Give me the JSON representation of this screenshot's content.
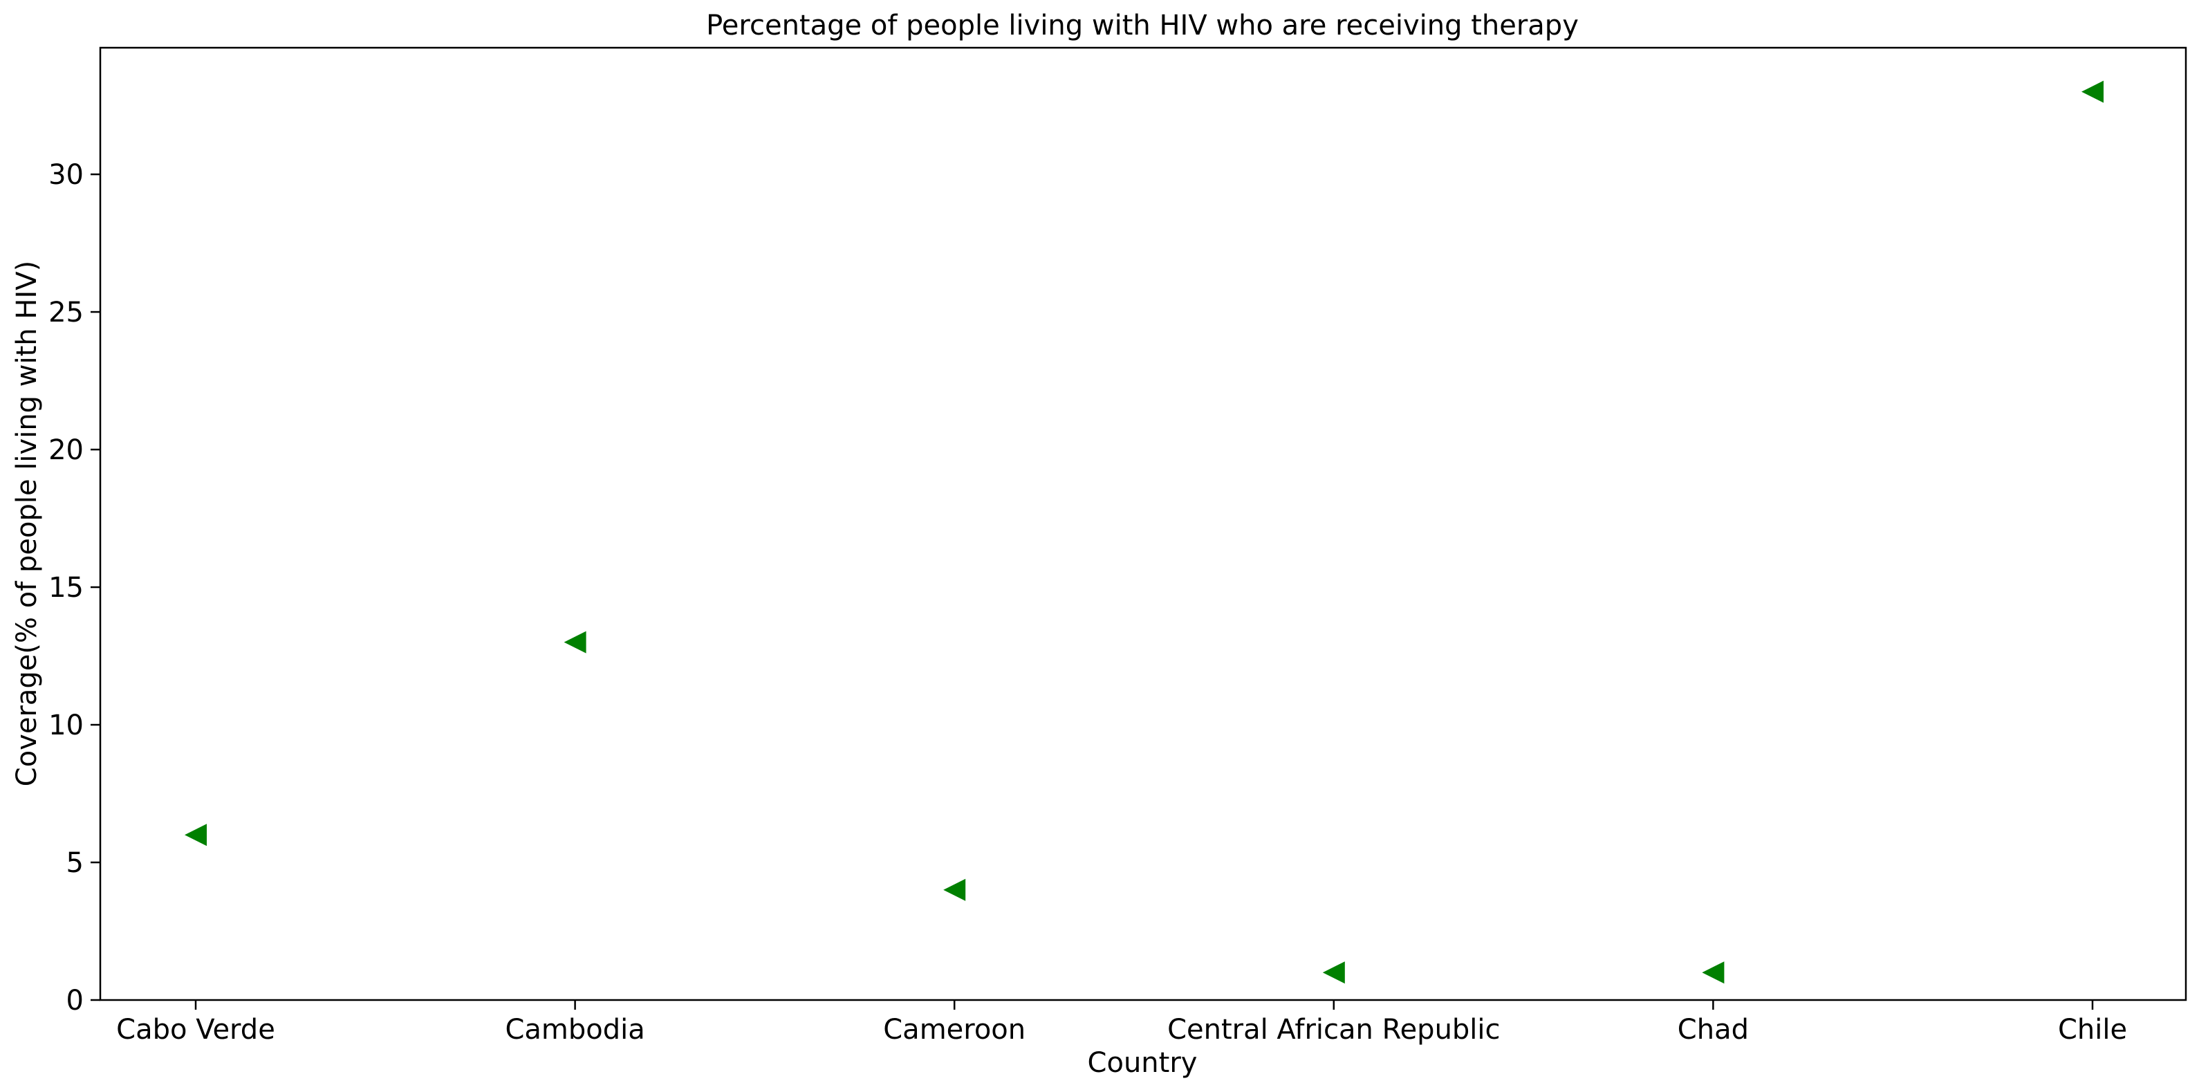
{
  "chart_data": {
    "type": "scatter",
    "title": "Percentage of people living with HIV who are receiving therapy",
    "xlabel": "Country",
    "ylabel": "Coverage(% of people living with HIV)",
    "categories": [
      "Cabo Verde",
      "Cambodia",
      "Cameroon",
      "Central African Republic",
      "Chad",
      "Chile"
    ],
    "series": [
      {
        "values": [
          6,
          13,
          4,
          1,
          1,
          33
        ],
        "color": "#008000",
        "marker": "triangle-left"
      }
    ],
    "ylim": [
      0,
      34.6
    ],
    "yticks": [
      0,
      5,
      10,
      15,
      20,
      25,
      30
    ],
    "grid": false,
    "legend": "none"
  }
}
